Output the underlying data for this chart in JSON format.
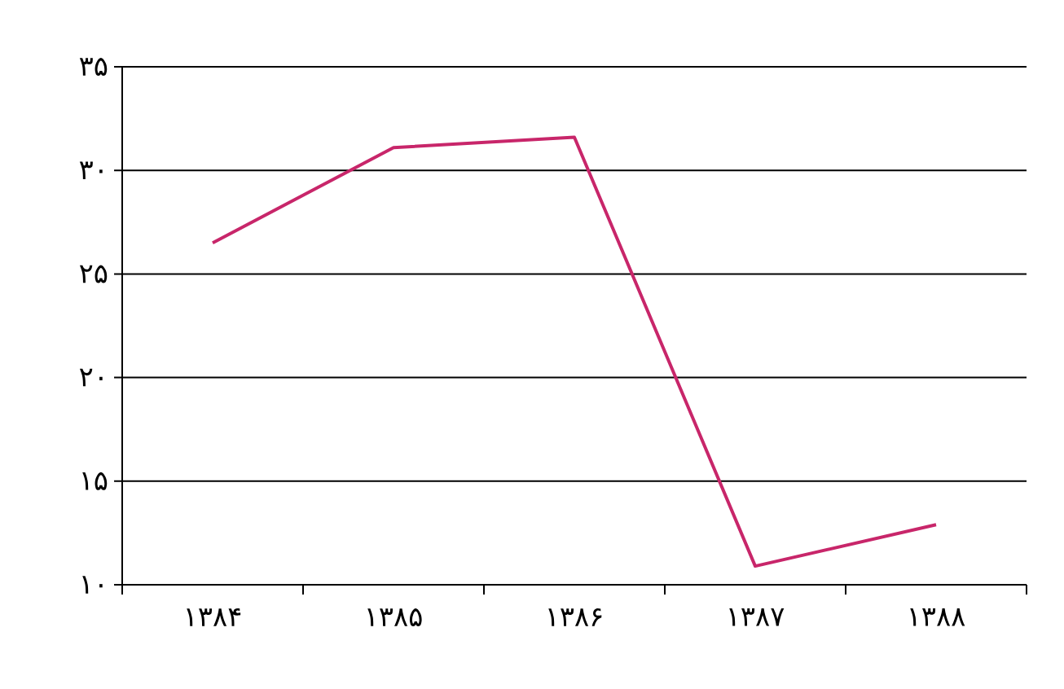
{
  "chart_data": {
    "type": "line",
    "categories": [
      "۱۳۸۴",
      "۱۳۸۵",
      "۱۳۸۶",
      "۱۳۸۷",
      "۱۳۸۸"
    ],
    "series": [
      {
        "color": "#c8266a",
        "values": [
          26.5,
          31.1,
          31.6,
          10.9,
          12.9
        ]
      }
    ],
    "ylim": [
      10,
      35
    ],
    "yticks": [
      {
        "value": 10,
        "label": "۱۰"
      },
      {
        "value": 15,
        "label": "۱۵"
      },
      {
        "value": 20,
        "label": "۲۰"
      },
      {
        "value": 25,
        "label": "۲۵"
      },
      {
        "value": 30,
        "label": "۳۰"
      },
      {
        "value": 35,
        "label": "۳۵"
      }
    ],
    "grid": "y",
    "marker": "none",
    "line_style": "solid"
  }
}
